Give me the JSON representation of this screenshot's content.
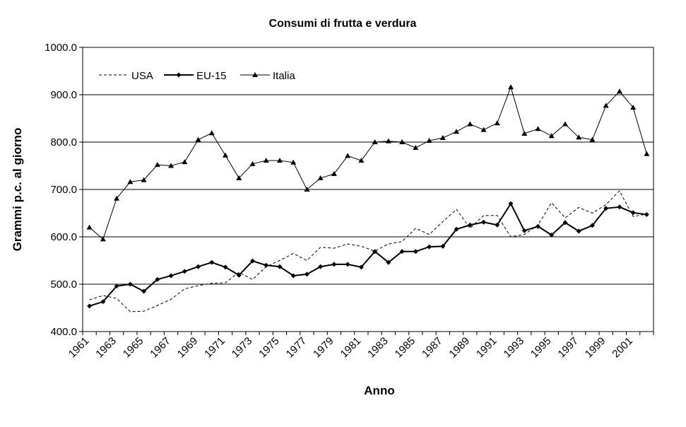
{
  "chart_data": {
    "type": "line",
    "title": "Consumi di frutta e verdura",
    "x_label": "Anno",
    "y_label": "Grammi p.c. al giorno",
    "categories": [
      "1961",
      null,
      "1963",
      null,
      "1965",
      null,
      "1967",
      null,
      "1969",
      null,
      "1971",
      null,
      "1973",
      null,
      "1975",
      null,
      "1977",
      null,
      "1979",
      null,
      "1981",
      null,
      "1983",
      null,
      "1985",
      null,
      "1987",
      null,
      "1989",
      null,
      "1991",
      null,
      "1993",
      null,
      "1995",
      null,
      "1997",
      null,
      "1999",
      null,
      "2001",
      null
    ],
    "series": [
      {
        "name": "USA",
        "color": "#000000",
        "style": "dotted",
        "marker": "none",
        "values": [
          467,
          476,
          470,
          442,
          443,
          455,
          468,
          490,
          497,
          502,
          503,
          525,
          510,
          537,
          550,
          565,
          550,
          578,
          576,
          585,
          580,
          570,
          585,
          590,
          618,
          605,
          632,
          658,
          618,
          645,
          645,
          600,
          605,
          625,
          672,
          640,
          662,
          650,
          668,
          697,
          643,
          648
        ]
      },
      {
        "name": "EU-15",
        "color": "#000000",
        "style": "solid-thick",
        "marker": "diamond",
        "values": [
          454,
          463,
          496,
          500,
          485,
          510,
          518,
          527,
          537,
          546,
          536,
          519,
          549,
          540,
          537,
          518,
          521,
          537,
          542,
          542,
          536,
          569,
          546,
          569,
          569,
          579,
          580,
          616,
          625,
          631,
          625,
          670,
          613,
          622,
          604,
          630,
          612,
          624,
          660,
          663,
          651,
          647
        ]
      },
      {
        "name": "Italia",
        "color": "#000000",
        "style": "solid",
        "marker": "triangle",
        "values": [
          620,
          595,
          681,
          716,
          720,
          752,
          750,
          758,
          805,
          819,
          772,
          724,
          754,
          761,
          761,
          757,
          700,
          724,
          733,
          771,
          761,
          800,
          802,
          800,
          788,
          803,
          809,
          822,
          838,
          826,
          840,
          916,
          818,
          828,
          813,
          838,
          810,
          805,
          877,
          907,
          873,
          775
        ]
      }
    ],
    "ylim": [
      400,
      1000
    ],
    "yticks": [
      {
        "value": 400,
        "label": "400.0"
      },
      {
        "value": 500,
        "label": "500.0"
      },
      {
        "value": 600,
        "label": "600.0"
      },
      {
        "value": 700,
        "label": "700.0"
      },
      {
        "value": 800,
        "label": "800.0"
      },
      {
        "value": 900,
        "label": "900.0"
      },
      {
        "value": 1000,
        "label": "1000.0"
      }
    ],
    "grid": true,
    "legend": "top-left"
  }
}
